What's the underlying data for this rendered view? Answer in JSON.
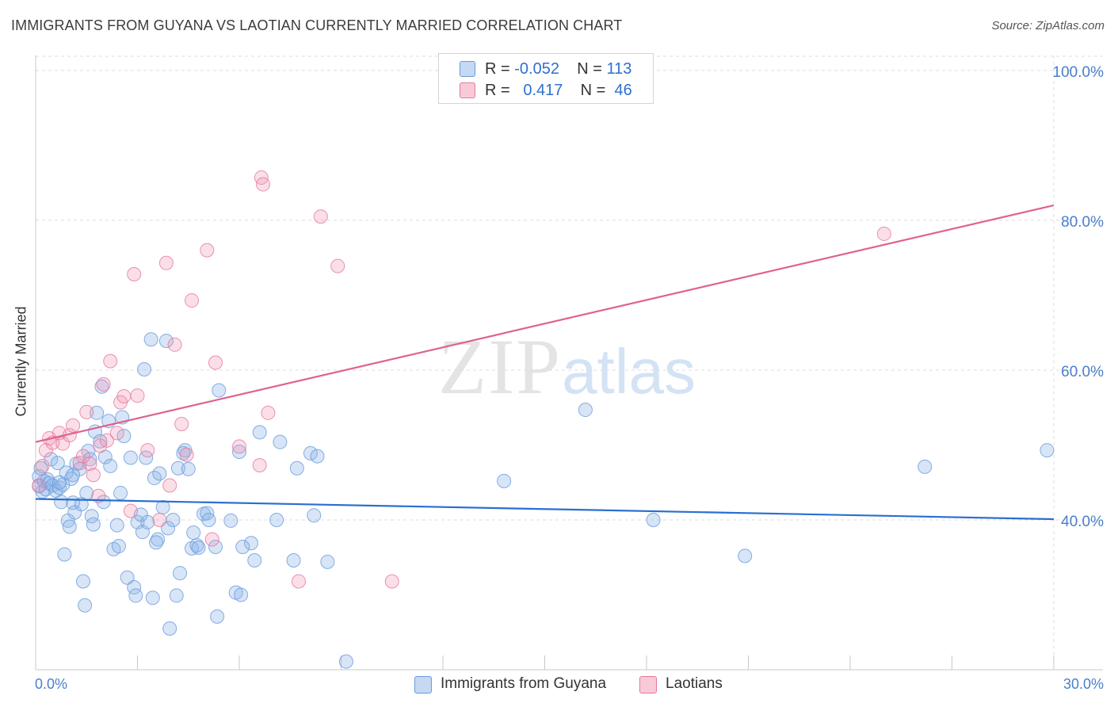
{
  "title": "IMMIGRANTS FROM GUYANA VS LAOTIAN CURRENTLY MARRIED CORRELATION CHART",
  "source": "Source: ZipAtlas.com",
  "watermark": {
    "zip": "ZIP",
    "atlas": "atlas"
  },
  "legend": {
    "rows": [
      {
        "r_label": "R =",
        "r_value": "-0.052",
        "n_label": "N =",
        "n_value": "113",
        "color": "#6a9bdc",
        "fill": "#c5d9f3"
      },
      {
        "r_label": "R =",
        "r_value": "0.417",
        "n_label": "N =",
        "n_value": "46",
        "color": "#e6789a",
        "fill": "#f8cad8"
      }
    ]
  },
  "bottom_legend": [
    {
      "label": "Immigrants from Guyana",
      "fill": "#c5d9f3",
      "stroke": "#6a9bdc"
    },
    {
      "label": "Laotians",
      "fill": "#f8cad8",
      "stroke": "#e6789a"
    }
  ],
  "chart_data": {
    "type": "scatter",
    "title": "IMMIGRANTS FROM GUYANA VS LAOTIAN CURRENTLY MARRIED CORRELATION CHART",
    "xlabel": "",
    "ylabel": "Currently Married",
    "xlim": [
      0,
      30
    ],
    "ylim": [
      20,
      102
    ],
    "x_tick_labels": [
      "0.0%",
      "30.0%"
    ],
    "y_ticks": [
      40,
      60,
      80,
      100
    ],
    "y_tick_labels": [
      "40.0%",
      "60.0%",
      "80.0%",
      "100.0%"
    ],
    "grid": "horizontal dashed",
    "series": [
      {
        "name": "Immigrants from Guyana",
        "color": "#6a9bdc",
        "trend": {
          "x": [
            0,
            30
          ],
          "y": [
            42.8,
            40.1
          ]
        },
        "points": [
          [
            0.1,
            45.8
          ],
          [
            0.1,
            44.5
          ],
          [
            0.15,
            46.9
          ],
          [
            0.2,
            43.8
          ],
          [
            0.25,
            45.2
          ],
          [
            0.3,
            44.1
          ],
          [
            0.35,
            45.4
          ],
          [
            0.4,
            44.9
          ],
          [
            0.45,
            48.1
          ],
          [
            0.5,
            44.6
          ],
          [
            0.6,
            43.9
          ],
          [
            0.65,
            47.6
          ],
          [
            0.7,
            44.3
          ],
          [
            0.75,
            42.4
          ],
          [
            0.8,
            44.7
          ],
          [
            0.85,
            35.4
          ],
          [
            0.9,
            46.3
          ],
          [
            0.95,
            39.9
          ],
          [
            1.0,
            39.1
          ],
          [
            1.05,
            45.5
          ],
          [
            1.1,
            42.3
          ],
          [
            1.15,
            41.0
          ],
          [
            1.2,
            47.5
          ],
          [
            1.3,
            46.8
          ],
          [
            1.35,
            42.1
          ],
          [
            1.4,
            31.8
          ],
          [
            1.45,
            28.6
          ],
          [
            1.5,
            43.6
          ],
          [
            1.55,
            49.2
          ],
          [
            1.6,
            48.1
          ],
          [
            1.65,
            40.5
          ],
          [
            1.7,
            39.4
          ],
          [
            1.75,
            51.8
          ],
          [
            1.8,
            54.3
          ],
          [
            1.9,
            50.5
          ],
          [
            1.95,
            57.8
          ],
          [
            2.0,
            42.4
          ],
          [
            2.05,
            48.4
          ],
          [
            2.2,
            47.2
          ],
          [
            2.3,
            36.1
          ],
          [
            2.4,
            39.3
          ],
          [
            2.45,
            36.5
          ],
          [
            2.5,
            43.6
          ],
          [
            2.55,
            53.7
          ],
          [
            2.6,
            51.2
          ],
          [
            2.7,
            32.3
          ],
          [
            2.8,
            48.3
          ],
          [
            2.9,
            31.0
          ],
          [
            2.95,
            29.9
          ],
          [
            3.0,
            39.7
          ],
          [
            3.1,
            40.7
          ],
          [
            3.15,
            38.4
          ],
          [
            3.2,
            60.1
          ],
          [
            3.25,
            48.3
          ],
          [
            3.3,
            39.7
          ],
          [
            3.4,
            64.1
          ],
          [
            3.45,
            29.6
          ],
          [
            3.5,
            45.6
          ],
          [
            3.6,
            37.4
          ],
          [
            3.65,
            46.2
          ],
          [
            3.75,
            41.7
          ],
          [
            3.85,
            63.9
          ],
          [
            3.9,
            38.9
          ],
          [
            3.95,
            25.5
          ],
          [
            4.05,
            40.0
          ],
          [
            4.15,
            29.9
          ],
          [
            4.2,
            46.9
          ],
          [
            4.25,
            32.9
          ],
          [
            4.4,
            49.3
          ],
          [
            4.5,
            46.8
          ],
          [
            4.6,
            36.2
          ],
          [
            4.65,
            38.3
          ],
          [
            4.75,
            36.6
          ],
          [
            4.8,
            36.3
          ],
          [
            4.95,
            40.8
          ],
          [
            5.05,
            40.9
          ],
          [
            5.1,
            40.0
          ],
          [
            5.3,
            36.4
          ],
          [
            5.35,
            27.1
          ],
          [
            5.4,
            57.3
          ],
          [
            5.75,
            39.9
          ],
          [
            5.9,
            30.3
          ],
          [
            6.0,
            49.1
          ],
          [
            6.05,
            30.0
          ],
          [
            6.35,
            36.9
          ],
          [
            6.45,
            34.6
          ],
          [
            6.6,
            51.7
          ],
          [
            7.1,
            40.0
          ],
          [
            7.2,
            50.4
          ],
          [
            7.6,
            34.6
          ],
          [
            7.7,
            46.9
          ],
          [
            8.1,
            48.9
          ],
          [
            8.2,
            40.6
          ],
          [
            8.3,
            48.5
          ],
          [
            8.6,
            34.4
          ],
          [
            9.15,
            21.1
          ],
          [
            13.8,
            45.2
          ],
          [
            16.2,
            54.7
          ],
          [
            18.2,
            40.0
          ],
          [
            20.9,
            35.2
          ],
          [
            26.2,
            47.1
          ],
          [
            29.8,
            49.3
          ],
          [
            0.7,
            45.0
          ],
          [
            1.1,
            46.0
          ],
          [
            2.15,
            53.2
          ],
          [
            3.55,
            37.0
          ],
          [
            4.35,
            48.9
          ],
          [
            6.1,
            36.4
          ]
        ]
      },
      {
        "name": "Laotians",
        "color": "#e6789a",
        "trend": {
          "x": [
            0,
            30
          ],
          "y": [
            50.4,
            82.0
          ]
        },
        "points": [
          [
            0.1,
            44.6
          ],
          [
            0.2,
            47.2
          ],
          [
            0.3,
            49.3
          ],
          [
            0.4,
            50.9
          ],
          [
            0.5,
            50.3
          ],
          [
            0.7,
            51.6
          ],
          [
            0.8,
            50.2
          ],
          [
            1.0,
            51.3
          ],
          [
            1.1,
            52.6
          ],
          [
            1.3,
            47.6
          ],
          [
            1.4,
            48.5
          ],
          [
            1.5,
            54.4
          ],
          [
            1.6,
            47.5
          ],
          [
            1.7,
            46.0
          ],
          [
            1.85,
            43.2
          ],
          [
            1.9,
            49.9
          ],
          [
            2.0,
            58.1
          ],
          [
            2.1,
            50.6
          ],
          [
            2.2,
            61.2
          ],
          [
            2.4,
            51.6
          ],
          [
            2.5,
            55.7
          ],
          [
            2.6,
            56.5
          ],
          [
            2.8,
            41.2
          ],
          [
            2.9,
            72.8
          ],
          [
            3.0,
            56.6
          ],
          [
            3.3,
            49.3
          ],
          [
            3.65,
            40.0
          ],
          [
            3.85,
            74.3
          ],
          [
            3.95,
            44.6
          ],
          [
            4.1,
            63.4
          ],
          [
            4.3,
            52.8
          ],
          [
            4.45,
            48.7
          ],
          [
            4.6,
            69.3
          ],
          [
            5.05,
            76.0
          ],
          [
            5.2,
            37.4
          ],
          [
            5.3,
            61.0
          ],
          [
            6.0,
            49.8
          ],
          [
            6.6,
            47.3
          ],
          [
            6.65,
            85.7
          ],
          [
            6.7,
            84.8
          ],
          [
            6.85,
            54.3
          ],
          [
            7.75,
            31.8
          ],
          [
            8.4,
            80.5
          ],
          [
            8.9,
            73.9
          ],
          [
            10.5,
            31.8
          ],
          [
            25.0,
            78.2
          ]
        ]
      }
    ]
  }
}
